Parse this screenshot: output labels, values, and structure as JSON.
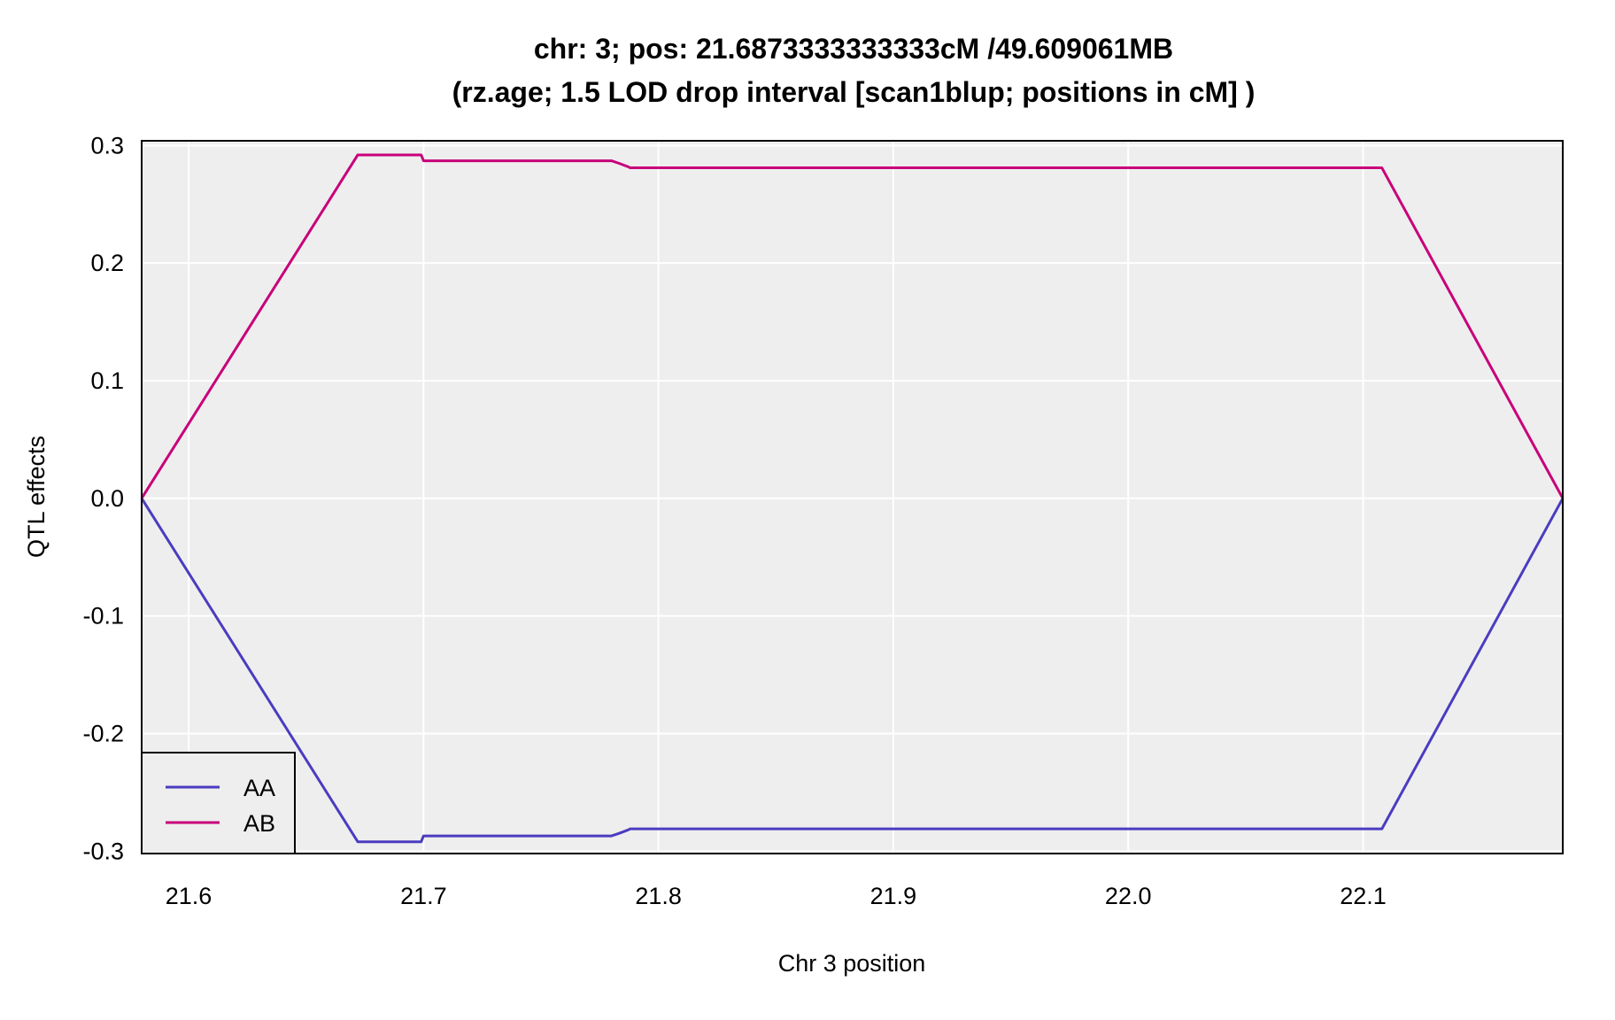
{
  "chart_data": {
    "type": "line",
    "title": "chr: 3; pos: 21.6873333333333cM /49.609061MB",
    "subtitle": "(rz.age; 1.5 LOD drop interval [scan1blup; positions in cM] )",
    "xlabel": "Chr 3 position",
    "ylabel": "QTL effects",
    "xlim": [
      21.58,
      22.185
    ],
    "ylim": [
      -0.302,
      0.304
    ],
    "x_ticks": [
      21.6,
      21.7,
      21.8,
      21.9,
      22.0,
      22.1
    ],
    "x_tick_labels": [
      "21.6",
      "21.7",
      "21.8",
      "21.9",
      "22.0",
      "22.1"
    ],
    "y_ticks": [
      0.3,
      0.2,
      0.1,
      0.0,
      -0.1,
      -0.2,
      -0.3
    ],
    "y_tick_labels": [
      "0.3",
      "0.2",
      "0.1",
      "0.0",
      "-0.1",
      "-0.2",
      "-0.3"
    ],
    "grid": true,
    "background": "#eeeeee",
    "legend_position": "bottom-left",
    "series": [
      {
        "name": "AA",
        "color": "#4b3cc0",
        "x": [
          21.58,
          21.672,
          21.699,
          21.7,
          21.78,
          21.783,
          21.787,
          21.788,
          22.108,
          22.185
        ],
        "y": [
          0.0,
          -0.292,
          -0.292,
          -0.287,
          -0.287,
          -0.285,
          -0.282,
          -0.281,
          -0.281,
          0.0
        ]
      },
      {
        "name": "AB",
        "color": "#c8007a",
        "x": [
          21.58,
          21.672,
          21.699,
          21.7,
          21.78,
          21.783,
          21.787,
          21.788,
          22.108,
          22.185
        ],
        "y": [
          0.0,
          0.292,
          0.292,
          0.287,
          0.287,
          0.285,
          0.282,
          0.281,
          0.281,
          0.0
        ]
      }
    ]
  }
}
